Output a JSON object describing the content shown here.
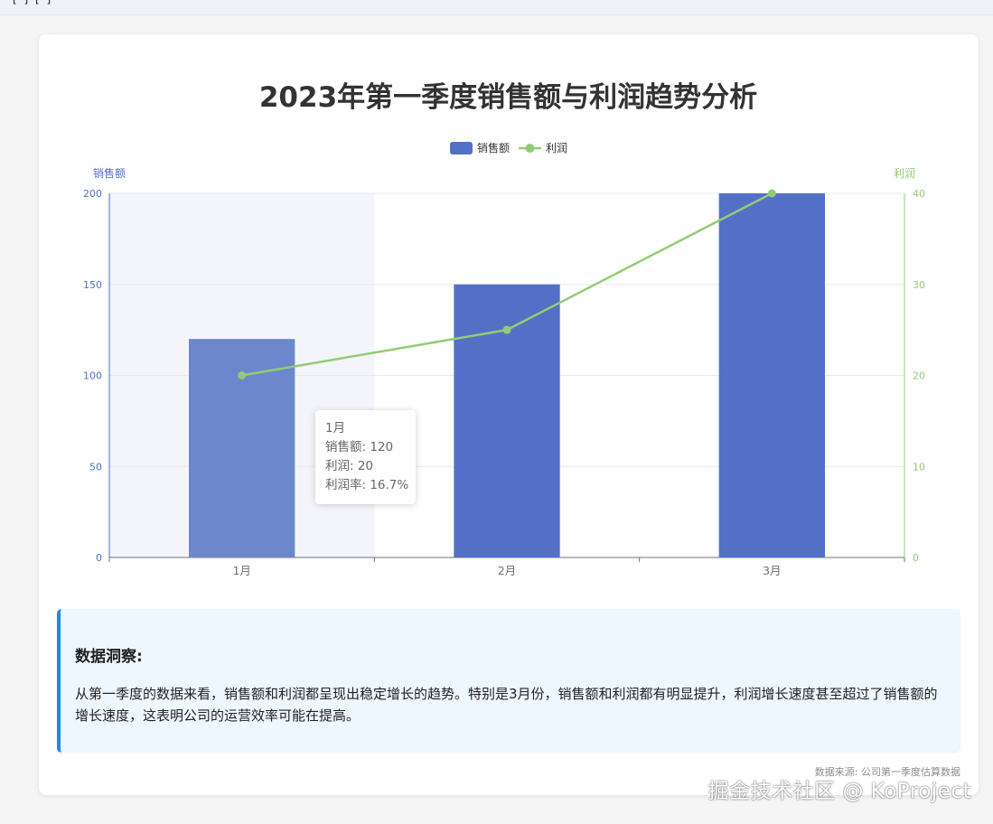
{
  "topbar": {
    "fragment": "[ ] [ ]"
  },
  "page": {
    "title": "2023年第一季度销售额与利润趋势分析"
  },
  "chart_data": {
    "type": "bar+line",
    "categories": [
      "1月",
      "2月",
      "3月"
    ],
    "series": [
      {
        "name": "销售额",
        "type": "bar",
        "axis": "left",
        "values": [
          120,
          150,
          200
        ],
        "color": "#5470c6"
      },
      {
        "name": "利润",
        "type": "line",
        "axis": "right",
        "values": [
          20,
          25,
          40
        ],
        "color": "#91cc75"
      }
    ],
    "y_left": {
      "label": "销售额",
      "ylim": [
        0,
        200
      ],
      "ticks": [
        "0",
        "50",
        "100",
        "150",
        "200"
      ],
      "color": "#5470c6"
    },
    "y_right": {
      "label": "利润",
      "ylim": [
        0,
        40
      ],
      "ticks": [
        "0",
        "10",
        "20",
        "30",
        "40"
      ],
      "color": "#91cc75"
    },
    "legend": {
      "position": "top-center",
      "items": [
        "销售额",
        "利润"
      ]
    },
    "highlighted_category": "1月",
    "grid": true
  },
  "tooltip": {
    "title": "1月",
    "line1": "销售额: 120",
    "line2": "利润: 20",
    "line3": "利润率: 16.7%"
  },
  "insight": {
    "title": "数据洞察:",
    "body": "从第一季度的数据来看，销售额和利润都呈现出稳定增长的趋势。特别是3月份，销售额和利润都有明显提升，利润增长速度甚至超过了销售额的增长速度，这表明公司的运营效率可能在提高。"
  },
  "source": "数据来源: 公司第一季度估算数据",
  "watermark": "掘金技术社区 @ KoProject"
}
